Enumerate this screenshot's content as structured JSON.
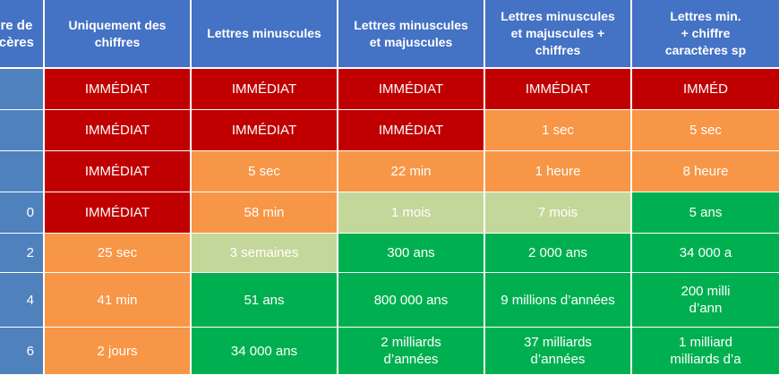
{
  "colors": {
    "header": "#4472c4",
    "immediate": "#c00000",
    "orange": "#f79646",
    "light_green": "#c4d79b",
    "green": "#00b050"
  },
  "table": {
    "headers": [
      "re de\ncères",
      "Uniquement des\nchiffres",
      "Lettres minuscules",
      "Lettres minuscules\net majuscules",
      "Lettres minuscules\net majuscules +\nchiffres",
      "Lettres min.\n+ chiffre\ncaractères sp"
    ],
    "rows": [
      {
        "label": "",
        "cells": [
          {
            "text": "IMMÉDIAT",
            "color": "#c00000"
          },
          {
            "text": "IMMÉDIAT",
            "color": "#c00000"
          },
          {
            "text": "IMMÉDIAT",
            "color": "#c00000"
          },
          {
            "text": "IMMÉDIAT",
            "color": "#c00000"
          },
          {
            "text": "IMMÉD",
            "color": "#c00000"
          }
        ]
      },
      {
        "label": "",
        "cells": [
          {
            "text": "IMMÉDIAT",
            "color": "#c00000"
          },
          {
            "text": "IMMÉDIAT",
            "color": "#c00000"
          },
          {
            "text": "IMMÉDIAT",
            "color": "#c00000"
          },
          {
            "text": "1 sec",
            "color": "#f79646"
          },
          {
            "text": "5 sec",
            "color": "#f79646"
          }
        ]
      },
      {
        "label": "",
        "cells": [
          {
            "text": "IMMÉDIAT",
            "color": "#c00000"
          },
          {
            "text": "5 sec",
            "color": "#f79646"
          },
          {
            "text": "22 min",
            "color": "#f79646"
          },
          {
            "text": "1 heure",
            "color": "#f79646"
          },
          {
            "text": "8 heure",
            "color": "#f79646"
          }
        ]
      },
      {
        "label": "0",
        "cells": [
          {
            "text": "IMMÉDIAT",
            "color": "#c00000"
          },
          {
            "text": "58 min",
            "color": "#f79646"
          },
          {
            "text": "1 mois",
            "color": "#c4d79b"
          },
          {
            "text": "7 mois",
            "color": "#c4d79b"
          },
          {
            "text": "5 ans",
            "color": "#00b050"
          }
        ]
      },
      {
        "label": "2",
        "cells": [
          {
            "text": "25 sec",
            "color": "#f79646"
          },
          {
            "text": "3 semaines",
            "color": "#c4d79b"
          },
          {
            "text": "300 ans",
            "color": "#00b050"
          },
          {
            "text": "2 000 ans",
            "color": "#00b050"
          },
          {
            "text": "34 000 a",
            "color": "#00b050"
          }
        ]
      },
      {
        "label": "4",
        "cells": [
          {
            "text": "41 min",
            "color": "#f79646"
          },
          {
            "text": "51 ans",
            "color": "#00b050"
          },
          {
            "text": "800 000 ans",
            "color": "#00b050"
          },
          {
            "text": "9 millions d’années",
            "color": "#00b050"
          },
          {
            "text": "200 milli\nd’ann",
            "color": "#00b050"
          }
        ]
      },
      {
        "label": "6",
        "cells": [
          {
            "text": "2 jours",
            "color": "#f79646"
          },
          {
            "text": "34 000 ans",
            "color": "#00b050"
          },
          {
            "text": "2 milliards\nd’années",
            "color": "#00b050"
          },
          {
            "text": "37 milliards\nd’années",
            "color": "#00b050"
          },
          {
            "text": "1 milliard\nmilliards d’a",
            "color": "#00b050"
          }
        ]
      }
    ]
  }
}
